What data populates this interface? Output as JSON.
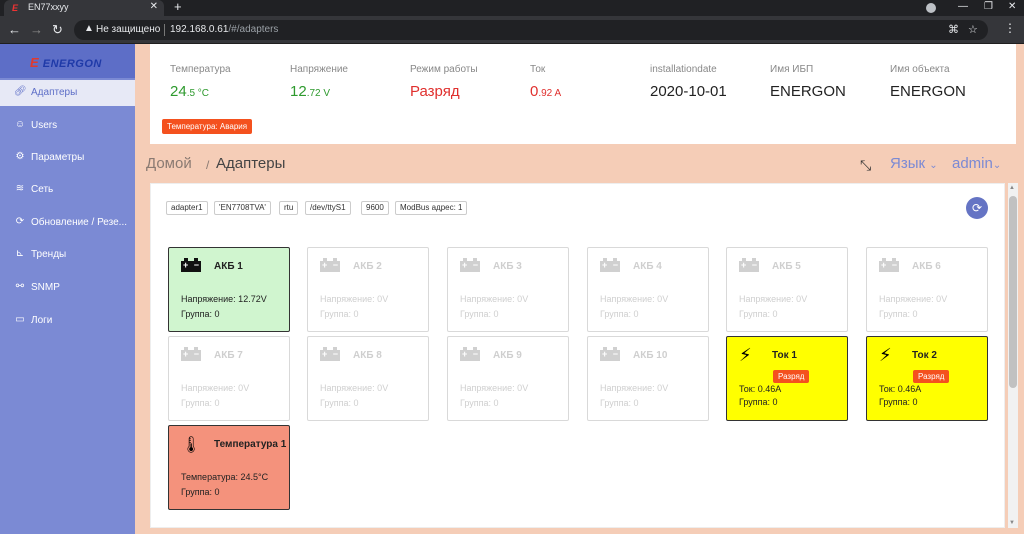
{
  "browser": {
    "tab_title": "EN77xxyy",
    "not_secure": "Не защищено",
    "url_host": "192.168.0.61",
    "url_path": "/#/adapters"
  },
  "sidebar": {
    "logo": "ENERGON",
    "items": [
      {
        "label": "Адаптеры",
        "icon": "link-icon",
        "active": true
      },
      {
        "label": "Users",
        "icon": "user-icon"
      },
      {
        "label": "Параметры",
        "icon": "gear-icon"
      },
      {
        "label": "Сеть",
        "icon": "wifi-icon"
      },
      {
        "label": "Обновление / Резе...",
        "icon": "refresh-icon"
      },
      {
        "label": "Тренды",
        "icon": "chart-icon"
      },
      {
        "label": "SNMP",
        "icon": "network-icon"
      },
      {
        "label": "Логи",
        "icon": "document-icon"
      }
    ]
  },
  "status": {
    "temperature": {
      "label": "Температура",
      "value": "24",
      "decimal": ".5",
      "unit": " °C"
    },
    "voltage": {
      "label": "Напряжение",
      "value": "12",
      "decimal": ".72",
      "unit": " V"
    },
    "mode": {
      "label": "Режим работы",
      "value": "Разряд"
    },
    "current": {
      "label": "Ток",
      "value": "0",
      "decimal": ".92",
      "unit": " A"
    },
    "installationdate": {
      "label": "installationdate",
      "value": "2020-10-01"
    },
    "ups_name": {
      "label": "Имя ИБП",
      "value": "ENERGON"
    },
    "object_name": {
      "label": "Имя объекта",
      "value": "ENERGON"
    },
    "alarm_badge": "Температура: Авария"
  },
  "breadcrumb": {
    "home": "Домой",
    "separator": "/",
    "current": "Адаптеры"
  },
  "header_right": {
    "language": "Язык",
    "user": "admin"
  },
  "adapter_info": {
    "chips": [
      "adapter1",
      "'EN7708TVA'",
      "rtu",
      "/dev/ttyS1",
      "9600",
      "ModBus адрес: 1"
    ]
  },
  "cards": [
    {
      "title": "АКБ 1",
      "line1": "Напряжение: 12.72V",
      "line2": "Группа: 0",
      "kind": "battery",
      "state": "green"
    },
    {
      "title": "АКБ 2",
      "line1": "Напряжение: 0V",
      "line2": "Группа: 0",
      "kind": "battery",
      "state": "off"
    },
    {
      "title": "АКБ 3",
      "line1": "Напряжение: 0V",
      "line2": "Группа: 0",
      "kind": "battery",
      "state": "off"
    },
    {
      "title": "АКБ 4",
      "line1": "Напряжение: 0V",
      "line2": "Группа: 0",
      "kind": "battery",
      "state": "off"
    },
    {
      "title": "АКБ 5",
      "line1": "Напряжение: 0V",
      "line2": "Группа: 0",
      "kind": "battery",
      "state": "off"
    },
    {
      "title": "АКБ 6",
      "line1": "Напряжение: 0V",
      "line2": "Группа: 0",
      "kind": "battery",
      "state": "off"
    },
    {
      "title": "АКБ 7",
      "line1": "Напряжение: 0V",
      "line2": "Группа: 0",
      "kind": "battery",
      "state": "off"
    },
    {
      "title": "АКБ 8",
      "line1": "Напряжение: 0V",
      "line2": "Группа: 0",
      "kind": "battery",
      "state": "off"
    },
    {
      "title": "АКБ 9",
      "line1": "Напряжение: 0V",
      "line2": "Группа: 0",
      "kind": "battery",
      "state": "off"
    },
    {
      "title": "АКБ 10",
      "line1": "Напряжение: 0V",
      "line2": "Группа: 0",
      "kind": "battery",
      "state": "off"
    },
    {
      "title": "Ток 1",
      "badge": "Разряд",
      "line1": "Ток: 0.46A",
      "line2": "Группа: 0",
      "kind": "current",
      "state": "yellow"
    },
    {
      "title": "Ток 2",
      "badge": "Разряд",
      "line1": "Ток: 0.46A",
      "line2": "Группа: 0",
      "kind": "current",
      "state": "yellow"
    },
    {
      "title": "Температура 1",
      "line1": "Температура: 24.5°C",
      "line2": "Группа: 0",
      "kind": "thermometer",
      "state": "salmon"
    }
  ]
}
